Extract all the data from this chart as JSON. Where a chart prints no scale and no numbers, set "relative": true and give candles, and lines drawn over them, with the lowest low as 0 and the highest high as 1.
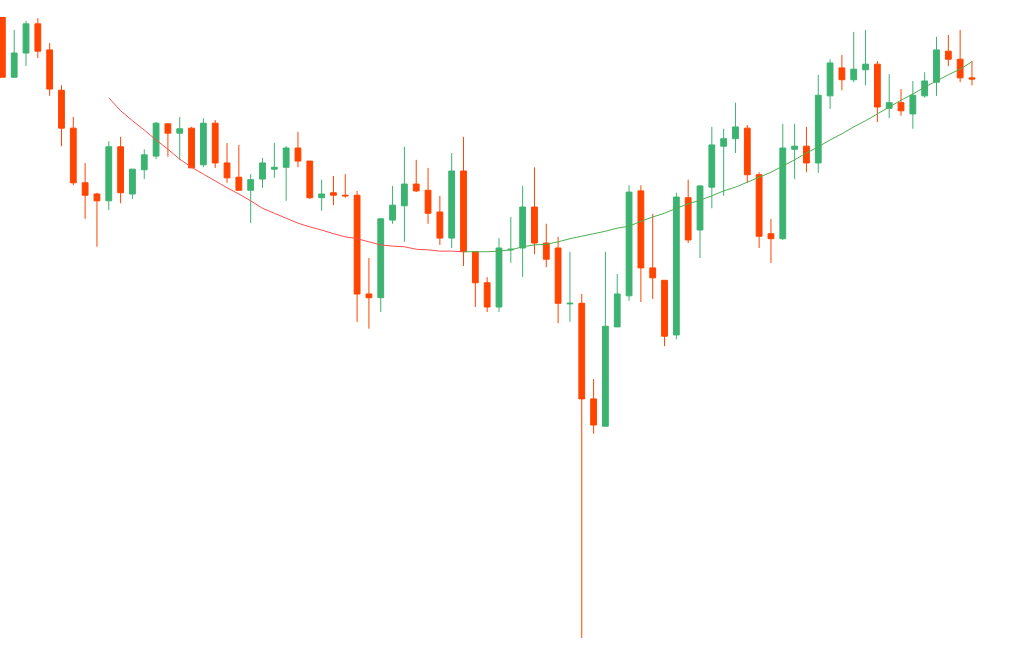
{
  "chart_data": {
    "type": "candlestick",
    "relative": true,
    "categories": [
      null,
      null,
      null,
      null,
      null,
      null,
      null,
      null,
      null,
      null,
      null,
      null,
      null,
      null,
      null,
      null,
      null,
      null,
      null,
      null,
      null,
      null,
      null,
      null,
      null,
      null,
      null,
      null,
      null,
      null,
      null,
      null,
      null,
      null,
      null,
      null,
      null,
      null,
      null,
      null,
      null,
      null,
      null,
      null,
      null,
      null,
      null,
      null,
      null,
      null,
      null,
      null,
      null,
      null,
      null,
      null,
      null,
      null,
      null,
      null,
      null,
      null,
      null,
      null,
      null,
      null,
      null,
      null,
      null,
      null,
      null,
      null,
      null,
      null,
      null,
      null,
      null,
      null,
      null,
      null,
      null,
      null,
      null
    ],
    "ohlc": [
      [
        1,
        1,
        0.903,
        0.903
      ],
      [
        0.903,
        0.979,
        0.902,
        0.942
      ],
      [
        0.942,
        0.994,
        0.921,
        0.989
      ],
      [
        0.989,
        0.998,
        0.934,
        0.945
      ],
      [
        0.947,
        0.958,
        0.873,
        0.884
      ],
      [
        0.882,
        0.89,
        0.792,
        0.821
      ],
      [
        0.821,
        0.839,
        0.729,
        0.733
      ],
      [
        0.733,
        0.765,
        0.675,
        0.713
      ],
      [
        0.715,
        0.717,
        0.63,
        0.704
      ],
      [
        0.704,
        0.8,
        0.689,
        0.791
      ],
      [
        0.791,
        0.807,
        0.7,
        0.717
      ],
      [
        0.715,
        0.755,
        0.707,
        0.755
      ],
      [
        0.754,
        0.787,
        0.739,
        0.778
      ],
      [
        0.776,
        0.831,
        0.771,
        0.829
      ],
      [
        0.828,
        0.828,
        0.775,
        0.813
      ],
      [
        0.813,
        0.839,
        0.77,
        0.82
      ],
      [
        0.821,
        0.823,
        0.757,
        0.757
      ],
      [
        0.762,
        0.837,
        0.758,
        0.829
      ],
      [
        0.829,
        0.834,
        0.757,
        0.765
      ],
      [
        0.765,
        0.797,
        0.733,
        0.741
      ],
      [
        0.742,
        0.794,
        0.721,
        0.721
      ],
      [
        0.721,
        0.747,
        0.668,
        0.738
      ],
      [
        0.739,
        0.773,
        0.725,
        0.765
      ],
      [
        0.755,
        0.797,
        0.741,
        0.758
      ],
      [
        0.758,
        0.792,
        0.704,
        0.789
      ],
      [
        0.789,
        0.815,
        0.758,
        0.768
      ],
      [
        0.768,
        0.768,
        0.707,
        0.709
      ],
      [
        0.709,
        0.738,
        0.688,
        0.715
      ],
      [
        0.717,
        0.744,
        0.697,
        0.713
      ],
      [
        0.713,
        0.747,
        0.709,
        0.712
      ],
      [
        0.713,
        0.72,
        0.509,
        0.554
      ],
      [
        0.554,
        0.612,
        0.498,
        0.548
      ],
      [
        0.548,
        0.676,
        0.525,
        0.675
      ],
      [
        0.673,
        0.728,
        0.667,
        0.697
      ],
      [
        0.696,
        0.791,
        0.638,
        0.731
      ],
      [
        0.731,
        0.77,
        0.718,
        0.72
      ],
      [
        0.721,
        0.757,
        0.667,
        0.684
      ],
      [
        0.686,
        0.712,
        0.633,
        0.644
      ],
      [
        0.644,
        0.781,
        0.628,
        0.752
      ],
      [
        0.752,
        0.807,
        0.599,
        0.622
      ],
      [
        0.622,
        0.622,
        0.533,
        0.572
      ],
      [
        0.572,
        0.581,
        0.525,
        0.533
      ],
      [
        0.533,
        0.644,
        0.525,
        0.628
      ],
      [
        0.625,
        0.678,
        0.604,
        0.626
      ],
      [
        0.628,
        0.728,
        0.581,
        0.694
      ],
      [
        0.694,
        0.758,
        0.618,
        0.636
      ],
      [
        0.636,
        0.667,
        0.597,
        0.61
      ],
      [
        0.628,
        0.646,
        0.507,
        0.539
      ],
      [
        0.538,
        0.622,
        0.509,
        0.539
      ],
      [
        0.539,
        0.554,
        0,
        0.385
      ],
      [
        0.385,
        0.417,
        0.329,
        0.343
      ],
      [
        0.341,
        0.622,
        0.341,
        0.502
      ],
      [
        0.501,
        0.586,
        0.501,
        0.554
      ],
      [
        0.551,
        0.729,
        0.543,
        0.718
      ],
      [
        0.72,
        0.729,
        0.541,
        0.596
      ],
      [
        0.596,
        0.683,
        0.546,
        0.58
      ],
      [
        0.576,
        0.576,
        0.47,
        0.486
      ],
      [
        0.488,
        0.717,
        0.481,
        0.71
      ],
      [
        0.709,
        0.738,
        0.636,
        0.641
      ],
      [
        0.657,
        0.729,
        0.612,
        0.728
      ],
      [
        0.726,
        0.823,
        0.692,
        0.794
      ],
      [
        0.792,
        0.82,
        0.712,
        0.804
      ],
      [
        0.804,
        0.862,
        0.781,
        0.823
      ],
      [
        0.821,
        0.826,
        0.733,
        0.746
      ],
      [
        0.746,
        0.75,
        0.628,
        0.647
      ],
      [
        0.651,
        0.675,
        0.604,
        0.643
      ],
      [
        0.643,
        0.828,
        0.641,
        0.789
      ],
      [
        0.787,
        0.828,
        0.739,
        0.792
      ],
      [
        0.792,
        0.823,
        0.75,
        0.765
      ],
      [
        0.765,
        0.907,
        0.749,
        0.874
      ],
      [
        0.873,
        0.932,
        0.852,
        0.926
      ],
      [
        0.918,
        0.939,
        0.882,
        0.899
      ],
      [
        0.899,
        0.976,
        0.895,
        0.916
      ],
      [
        0.915,
        0.979,
        0.89,
        0.924
      ],
      [
        0.924,
        0.929,
        0.831,
        0.855
      ],
      [
        0.853,
        0.908,
        0.837,
        0.862
      ],
      [
        0.862,
        0.884,
        0.841,
        0.849
      ],
      [
        0.844,
        0.897,
        0.82,
        0.874
      ],
      [
        0.873,
        0.911,
        0.87,
        0.897
      ],
      [
        0.895,
        0.968,
        0.873,
        0.947
      ],
      [
        0.945,
        0.971,
        0.921,
        0.932
      ],
      [
        0.932,
        0.979,
        0.895,
        0.902
      ],
      [
        0.902,
        0.929,
        0.89,
        0.9
      ]
    ],
    "colors": [
      "#ff4500",
      "#3cb371",
      "#3cb371",
      "#ff4500",
      "#ff4500",
      "#ff4500",
      "#ff4500",
      "#ff4500",
      "#ff4500",
      "#3cb371",
      "#ff4500",
      "#3cb371",
      "#3cb371",
      "#3cb371",
      "#ff4500",
      "#3cb371",
      "#ff4500",
      "#3cb371",
      "#ff4500",
      "#ff4500",
      "#ff4500",
      "#3cb371",
      "#3cb371",
      "#3cb371",
      "#3cb371",
      "#ff4500",
      "#ff4500",
      "#3cb371",
      "#ff4500",
      "#ff4500",
      "#ff4500",
      "#ff4500",
      "#3cb371",
      "#3cb371",
      "#3cb371",
      "#ff4500",
      "#ff4500",
      "#ff4500",
      "#3cb371",
      "#ff4500",
      "#ff4500",
      "#ff4500",
      "#3cb371",
      "#3cb371",
      "#3cb371",
      "#ff4500",
      "#ff4500",
      "#ff4500",
      "#3cb371",
      "#ff4500",
      "#ff4500",
      "#3cb371",
      "#3cb371",
      "#3cb371",
      "#ff4500",
      "#ff4500",
      "#ff4500",
      "#3cb371",
      "#ff4500",
      "#3cb371",
      "#3cb371",
      "#3cb371",
      "#3cb371",
      "#ff4500",
      "#ff4500",
      "#ff4500",
      "#3cb371",
      "#3cb371",
      "#ff4500",
      "#3cb371",
      "#3cb371",
      "#ff4500",
      "#3cb371",
      "#3cb371",
      "#ff4500",
      "#3cb371",
      "#ff4500",
      "#3cb371",
      "#3cb371",
      "#3cb371",
      "#ff4500",
      "#ff4500",
      "#ff4500"
    ],
    "series": [
      {
        "type": "line",
        "color": "#ff4d4d",
        "values": [
          null,
          null,
          null,
          null,
          null,
          null,
          null,
          null,
          null,
          0.87,
          0.849,
          0.833,
          0.818,
          0.802,
          0.787,
          0.771,
          0.758,
          0.747,
          0.736,
          0.725,
          0.715,
          0.704,
          0.692,
          0.684,
          0.676,
          0.668,
          0.662,
          0.657,
          0.651,
          0.646,
          0.643,
          0.638,
          0.633,
          0.631,
          0.63,
          0.626,
          0.625,
          0.623,
          0.623,
          0.622,
          null,
          null,
          null,
          null,
          null,
          null,
          null,
          null,
          null,
          null,
          null,
          null,
          null,
          null,
          null,
          null,
          null,
          null,
          null,
          null,
          null,
          null,
          null,
          null,
          null,
          null,
          null,
          null,
          null,
          null,
          null,
          null,
          null,
          null,
          null,
          null,
          null,
          null,
          null,
          null,
          null,
          null,
          null
        ]
      },
      {
        "type": "line",
        "color": "#4caf50",
        "values": [
          null,
          null,
          null,
          null,
          null,
          null,
          null,
          null,
          null,
          null,
          null,
          null,
          null,
          null,
          null,
          null,
          null,
          null,
          null,
          null,
          null,
          null,
          null,
          null,
          null,
          null,
          null,
          null,
          null,
          null,
          null,
          null,
          null,
          null,
          null,
          null,
          null,
          null,
          null,
          0.622,
          0.622,
          0.622,
          0.623,
          0.625,
          0.63,
          0.633,
          0.634,
          0.638,
          0.643,
          0.647,
          0.651,
          0.655,
          0.66,
          0.663,
          0.671,
          0.678,
          0.684,
          0.692,
          0.699,
          0.705,
          0.712,
          0.72,
          0.726,
          0.734,
          0.742,
          0.75,
          0.76,
          0.77,
          0.781,
          0.791,
          0.802,
          0.812,
          0.823,
          0.833,
          0.844,
          0.855,
          0.866,
          0.876,
          0.887,
          0.897,
          0.907,
          0.916,
          0.928
        ]
      }
    ],
    "grid": false
  }
}
